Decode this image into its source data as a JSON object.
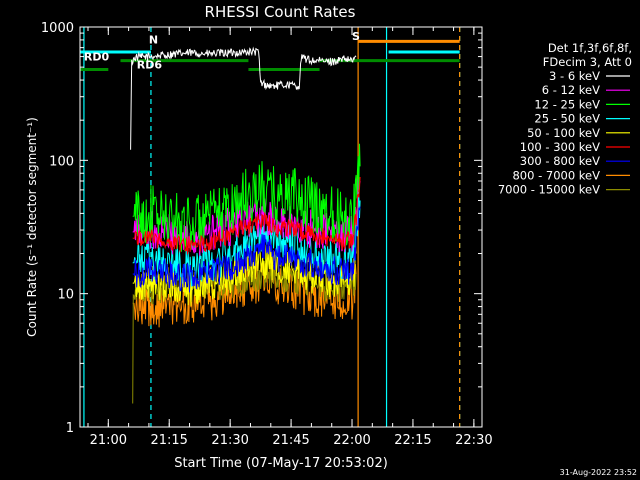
{
  "chart_data": {
    "type": "line",
    "title": "RHESSI Count Rates",
    "xlabel": "Start Time (07-May-17 20:53:02)",
    "ylabel": "Count Rate (s⁻¹ detector segment⁻¹)",
    "yscale": "log",
    "ylim": [
      1,
      1000
    ],
    "xlim": [
      "20:53:02",
      "22:32:00"
    ],
    "x_ticks": [
      "21:00",
      "21:15",
      "21:30",
      "21:45",
      "22:00",
      "22:15",
      "22:30"
    ],
    "y_ticks": [
      "1",
      "10",
      "100",
      "1000"
    ],
    "legend_position": "right",
    "legend_header": [
      "Det 1f,3f,6f,8f,",
      "FDecim 3, Att 0"
    ],
    "footer": "31-Aug-2022 23:52",
    "annotations": [
      {
        "text": "N",
        "x": "21:10",
        "y": 750,
        "color": "#00ffff"
      },
      {
        "text": "S",
        "x": "22:00",
        "y": 800,
        "color": "#ff8c00"
      },
      {
        "text": "RD0",
        "x": "20:54",
        "y": 560,
        "color": "#00c800"
      },
      {
        "text": "RD6",
        "x": "21:07",
        "y": 490,
        "color": "#00c800"
      }
    ],
    "vertical_lines": [
      {
        "x": "20:54:00",
        "color": "#00ffff",
        "style": "solid"
      },
      {
        "x": "21:10:30",
        "color": "#00ffff",
        "style": "dashed"
      },
      {
        "x": "22:01:30",
        "color": "#ff8c00",
        "style": "solid"
      },
      {
        "x": "22:08:30",
        "color": "#00ffff",
        "style": "solid"
      },
      {
        "x": "22:26:30",
        "color": "#00ffff",
        "style": "dashed"
      },
      {
        "x": "22:26:30",
        "color": "#ff8c00",
        "style": "dashed"
      }
    ],
    "flag_bars": [
      {
        "x0": "20:53:02",
        "x1": "21:10:30",
        "y": 650,
        "color": "#00ffff"
      },
      {
        "x0": "22:09:00",
        "x1": "22:26:30",
        "y": 650,
        "color": "#00ffff"
      },
      {
        "x0": "22:01:30",
        "x1": "22:26:30",
        "y": 780,
        "color": "#ff8c00"
      },
      {
        "x0": "20:53:02",
        "x1": "21:00:00",
        "y": 480,
        "color": "#008c00"
      },
      {
        "x0": "21:03:00",
        "x1": "21:34:30",
        "y": 560,
        "color": "#008c00"
      },
      {
        "x0": "21:34:30",
        "x1": "21:52:00",
        "y": 480,
        "color": "#008c00"
      },
      {
        "x0": "21:52:00",
        "x1": "22:26:30",
        "y": 560,
        "color": "#008c00"
      }
    ],
    "series": [
      {
        "name": "3 - 6 keV",
        "color": "#ffffff",
        "x": [
          "21:05:30",
          "21:05:45",
          "21:06:30",
          "21:10",
          "21:15",
          "21:20",
          "21:25",
          "21:30",
          "21:35",
          "21:37",
          "21:37:30",
          "21:40",
          "21:44",
          "21:47",
          "21:47:30",
          "21:50",
          "21:55",
          "21:58",
          "22:00",
          "22:01"
        ],
        "values": [
          120,
          540,
          590,
          600,
          620,
          640,
          630,
          640,
          650,
          650,
          380,
          360,
          370,
          360,
          590,
          560,
          550,
          570,
          560,
          600
        ]
      },
      {
        "name": "6 - 12 keV",
        "color": "#ff00ff",
        "x": [
          "21:06",
          "21:10",
          "21:15",
          "21:20",
          "21:25",
          "21:30",
          "21:33",
          "21:36",
          "21:38",
          "21:40",
          "21:42",
          "21:45",
          "21:48",
          "21:52",
          "21:56",
          "22:00",
          "22:01",
          "22:02"
        ],
        "values": [
          29,
          30,
          28,
          26,
          28,
          32,
          35,
          37,
          38,
          36,
          33,
          34,
          31,
          30,
          28,
          28,
          40,
          70
        ]
      },
      {
        "name": "12 - 25 keV",
        "color": "#00ff00",
        "x": [
          "21:06",
          "21:10",
          "21:15",
          "21:20",
          "21:25",
          "21:30",
          "21:33",
          "21:36",
          "21:38",
          "21:40",
          "21:42",
          "21:45",
          "21:48",
          "21:52",
          "21:56",
          "22:00",
          "22:01",
          "22:02"
        ],
        "values": [
          38,
          40,
          36,
          33,
          36,
          44,
          52,
          58,
          60,
          56,
          52,
          55,
          48,
          44,
          40,
          37,
          55,
          90
        ]
      },
      {
        "name": "25 - 50 keV",
        "color": "#00ffff",
        "x": [
          "21:06",
          "21:10",
          "21:15",
          "21:20",
          "21:25",
          "21:30",
          "21:33",
          "21:36",
          "21:38",
          "21:40",
          "21:42",
          "21:45",
          "21:48",
          "21:52",
          "21:56",
          "22:00",
          "22:01",
          "22:02"
        ],
        "values": [
          17,
          18,
          17,
          16,
          17,
          20,
          24,
          27,
          29,
          26,
          24,
          25,
          22,
          20,
          18,
          17,
          28,
          50
        ]
      },
      {
        "name": "50 - 100 keV",
        "color": "#ffff00",
        "x": [
          "21:06",
          "21:10",
          "21:15",
          "21:20",
          "21:25",
          "21:30",
          "21:33",
          "21:36",
          "21:38",
          "21:40",
          "21:42",
          "21:45",
          "21:48",
          "21:52",
          "21:56",
          "22:00",
          "22:01"
        ],
        "values": [
          12,
          12,
          12,
          11,
          12,
          13,
          15,
          17,
          18,
          17,
          16,
          16,
          14,
          13,
          13,
          12,
          20
        ]
      },
      {
        "name": "100 - 300 keV",
        "color": "#ff0000",
        "x": [
          "21:06",
          "21:10",
          "21:15",
          "21:20",
          "21:25",
          "21:30",
          "21:33",
          "21:36",
          "21:38",
          "21:40",
          "21:42",
          "21:45",
          "21:48",
          "21:52",
          "21:56",
          "22:00",
          "22:01",
          "22:02"
        ],
        "values": [
          26,
          27,
          24,
          23,
          24,
          28,
          31,
          34,
          36,
          33,
          30,
          32,
          29,
          27,
          25,
          25,
          38,
          75
        ]
      },
      {
        "name": "300 - 800 keV",
        "color": "#0000ff",
        "x": [
          "21:06",
          "21:10",
          "21:15",
          "21:20",
          "21:25",
          "21:30",
          "21:33",
          "21:36",
          "21:38",
          "21:40",
          "21:42",
          "21:45",
          "21:48",
          "21:52",
          "21:56",
          "22:00",
          "22:01",
          "22:02"
        ],
        "values": [
          14,
          15,
          14,
          13,
          14,
          16,
          18,
          20,
          22,
          20,
          18,
          19,
          17,
          16,
          15,
          14,
          22,
          45
        ]
      },
      {
        "name": "800 - 7000 keV",
        "color": "#ff8c00",
        "x": [
          "21:06",
          "21:10",
          "21:15",
          "21:20",
          "21:25",
          "21:30",
          "21:33",
          "21:36",
          "21:38",
          "21:40",
          "21:42",
          "21:45",
          "21:48",
          "21:52",
          "21:56",
          "22:00",
          "22:01"
        ],
        "values": [
          8.5,
          8,
          8,
          8.5,
          9,
          10,
          11,
          12,
          13,
          12,
          11,
          11.5,
          10,
          9.5,
          9,
          8.5,
          14
        ]
      },
      {
        "name": "7000 - 15000 keV",
        "color": "#8c8c00",
        "x": [
          "21:06",
          "21:06:10",
          "21:10",
          "21:20",
          "21:30",
          "21:40",
          "21:50",
          "22:00",
          "22:01"
        ],
        "values": [
          1.5,
          11,
          11,
          11,
          12,
          14,
          12,
          11,
          14
        ]
      }
    ]
  }
}
